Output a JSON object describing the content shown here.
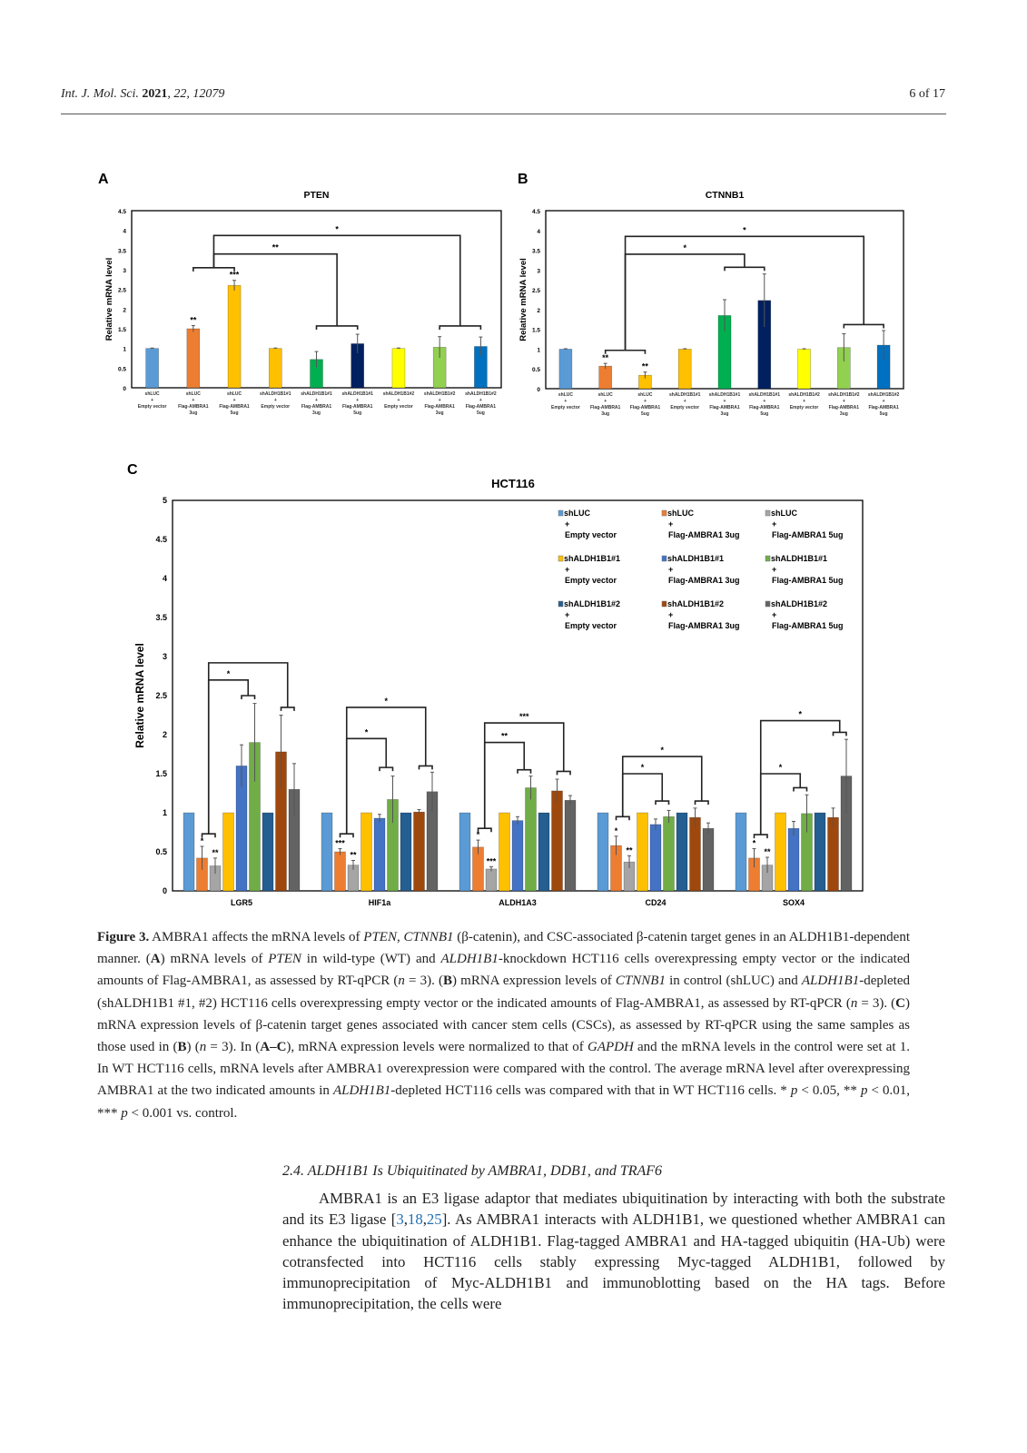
{
  "header": {
    "journal": "Int. J. Mol. Sci.",
    "year": "2021",
    "volume_issue": ", 22, 12079",
    "page": "6 of 17"
  },
  "colors": {
    "A": [
      "#5B9BD5",
      "#ED7D31",
      "#FFC000",
      "#FFC000",
      "#00B050",
      "#002060",
      "#FFFF00",
      "#92D050",
      "#0070C0"
    ],
    "C": [
      "#5B9BD5",
      "#ED7D31",
      "#A5A5A5",
      "#FFC000",
      "#4472C4",
      "#70AD47",
      "#255E91",
      "#9E480E",
      "#636363"
    ]
  },
  "chart_data": [
    {
      "panel": "A",
      "type": "bar",
      "title": "PTEN",
      "ylabel": "Relative mRNA level",
      "ylim": [
        0,
        4.5
      ],
      "yticks": [
        "0",
        "0.5",
        "1",
        "1.5",
        "2",
        "2.5",
        "3",
        "3.5",
        "4",
        "4.5"
      ],
      "categories": [
        [
          "shLUC",
          "+",
          "Empty vector"
        ],
        [
          "shLUC",
          "+",
          "Flag-AMBRA1",
          "3ug"
        ],
        [
          "shLUC",
          "+",
          "Flag-AMBRA1",
          "5ug"
        ],
        [
          "shALDH1B1#1",
          "+",
          "Empty vector"
        ],
        [
          "shALDH1B1#1",
          "+",
          "Flag-AMBRA1",
          "3ug"
        ],
        [
          "shALDH1B1#1",
          "+",
          "Flag-AMBRA1",
          "5ug"
        ],
        [
          "shALDH1B1#2",
          "+",
          "Empty vector"
        ],
        [
          "shALDH1B1#2",
          "+",
          "Flag-AMBRA1",
          "3ug"
        ],
        [
          "shALDH1B1#2",
          "+",
          "Flag-AMBRA1",
          "5ug"
        ]
      ],
      "values": [
        1,
        1.5,
        2.6,
        1,
        0.72,
        1.12,
        1,
        1.03,
        1.05
      ],
      "errors": [
        0.01,
        0.08,
        0.13,
        0.01,
        0.2,
        0.24,
        0.01,
        0.27,
        0.24
      ],
      "marks": [
        "",
        "**",
        "***",
        "",
        "",
        "",
        "",
        "",
        ""
      ],
      "caps": [
        {
          "bars": [
            1,
            2
          ],
          "y": 3.05
        },
        {
          "bars": [
            4,
            5
          ],
          "y": 1.57
        },
        {
          "bars": [
            7,
            8
          ],
          "y": 1.57
        }
      ],
      "links": [
        {
          "from": 0,
          "to": 1,
          "y": 3.4,
          "label": "**"
        },
        {
          "from": 0,
          "to": 2,
          "y": 3.87,
          "label": "*"
        }
      ]
    },
    {
      "panel": "B",
      "type": "bar",
      "title": "CTNNB1",
      "ylabel": "Relative mRNA level",
      "ylim": [
        0,
        4.5
      ],
      "yticks": [
        "0",
        "0.5",
        "1",
        "1.5",
        "2",
        "2.5",
        "3",
        "3.5",
        "4",
        "4.5"
      ],
      "categories": [
        [
          "shLUC",
          "+",
          "Empty vector"
        ],
        [
          "shLUC",
          "+",
          "Flag-AMBRA1",
          "3ug"
        ],
        [
          "shLUC",
          "+",
          "Flag-AMBRA1",
          "5ug"
        ],
        [
          "shALDH1B1#1",
          "+",
          "Empty vector"
        ],
        [
          "shALDH1B1#1",
          "+",
          "Flag-AMBRA1",
          "3ug"
        ],
        [
          "shALDH1B1#1",
          "+",
          "Flag-AMBRA1",
          "5ug"
        ],
        [
          "shALDH1B1#2",
          "+",
          "Empty vector"
        ],
        [
          "shALDH1B1#2",
          "+",
          "Flag-AMBRA1",
          "3ug"
        ],
        [
          "shALDH1B1#2",
          "+",
          "Flag-AMBRA1",
          "5ug"
        ]
      ],
      "values": [
        1,
        0.57,
        0.34,
        1,
        1.85,
        2.23,
        1,
        1.04,
        1.1
      ],
      "errors": [
        0.01,
        0.07,
        0.08,
        0.01,
        0.4,
        0.67,
        0.01,
        0.35,
        0.37
      ],
      "marks": [
        "",
        "**",
        "**",
        "",
        "",
        "",
        "",
        "",
        ""
      ],
      "caps": [
        {
          "bars": [
            1,
            2
          ],
          "y": 0.97
        },
        {
          "bars": [
            4,
            5
          ],
          "y": 3.07
        },
        {
          "bars": [
            7,
            8
          ],
          "y": 1.62
        }
      ],
      "links": [
        {
          "from": 0,
          "to": 1,
          "y": 3.4,
          "label": "*"
        },
        {
          "from": 0,
          "to": 2,
          "y": 3.85,
          "label": "*"
        }
      ]
    },
    {
      "panel": "C",
      "type": "bar",
      "title": "HCT116",
      "ylabel": "Relative mRNA level",
      "ylim": [
        0,
        5
      ],
      "yticks": [
        "0",
        "0.5",
        "1",
        "1.5",
        "2",
        "2.5",
        "3",
        "3.5",
        "4",
        "4.5",
        "5"
      ],
      "legend": [
        [
          "shLUC",
          "+",
          "Empty vector"
        ],
        [
          "shLUC",
          "+",
          "Flag-AMBRA1 3ug"
        ],
        [
          "shLUC",
          "+",
          "Flag-AMBRA1 5ug"
        ],
        [
          "shALDH1B1#1",
          "+",
          "Empty vector"
        ],
        [
          "shALDH1B1#1",
          "+",
          "Flag-AMBRA1 3ug"
        ],
        [
          "shALDH1B1#1",
          "+",
          "Flag-AMBRA1 5ug"
        ],
        [
          "shALDH1B1#2",
          "+",
          "Empty vector"
        ],
        [
          "shALDH1B1#2",
          "+",
          "Flag-AMBRA1 3ug"
        ],
        [
          "shALDH1B1#2",
          "+",
          "Flag-AMBRA1 5ug"
        ]
      ],
      "legend_placement": "top-right",
      "groups": [
        {
          "name": "LGR5",
          "values": [
            1,
            0.42,
            0.32,
            1,
            1.6,
            1.9,
            1,
            1.78,
            1.3
          ],
          "errors": [
            0,
            0.15,
            0.1,
            0,
            0.27,
            0.5,
            0,
            0.47,
            0.33
          ],
          "marks": [
            "",
            "*",
            "**",
            "",
            "",
            "",
            "",
            "",
            ""
          ],
          "caps": [
            {
              "bars": [
                1,
                2
              ],
              "y": 0.73
            },
            {
              "bars": [
                4,
                5
              ],
              "y": 2.5
            },
            {
              "bars": [
                7,
                8
              ],
              "y": 2.35
            }
          ],
          "links": [
            {
              "from": 0,
              "to": 1,
              "y": 2.7,
              "label": "*"
            },
            {
              "from": 0,
              "to": 2,
              "y": 2.92,
              "label": ""
            }
          ]
        },
        {
          "name": "HIF1a",
          "values": [
            1,
            0.5,
            0.33,
            1,
            0.93,
            1.17,
            1,
            1.01,
            1.27
          ],
          "errors": [
            0,
            0.04,
            0.06,
            0,
            0.05,
            0.3,
            0,
            0.03,
            0.25
          ],
          "marks": [
            "",
            "***",
            "**",
            "",
            "",
            "",
            "",
            "",
            ""
          ],
          "caps": [
            {
              "bars": [
                1,
                2
              ],
              "y": 0.73
            },
            {
              "bars": [
                4,
                5
              ],
              "y": 1.58
            },
            {
              "bars": [
                7,
                8
              ],
              "y": 1.6
            }
          ],
          "links": [
            {
              "from": 0,
              "to": 1,
              "y": 1.95,
              "label": "*"
            },
            {
              "from": 0,
              "to": 2,
              "y": 2.35,
              "label": "*"
            }
          ]
        },
        {
          "name": "ALDH1A3",
          "values": [
            1,
            0.56,
            0.28,
            1,
            0.9,
            1.32,
            1,
            1.28,
            1.16
          ],
          "errors": [
            0,
            0.09,
            0.03,
            0,
            0.05,
            0.15,
            0,
            0.15,
            0.06
          ],
          "marks": [
            "",
            "*",
            "***",
            "",
            "",
            "",
            "",
            "",
            ""
          ],
          "caps": [
            {
              "bars": [
                1,
                2
              ],
              "y": 0.8
            },
            {
              "bars": [
                4,
                5
              ],
              "y": 1.55
            },
            {
              "bars": [
                7,
                8
              ],
              "y": 1.53
            }
          ],
          "links": [
            {
              "from": 0,
              "to": 1,
              "y": 1.9,
              "label": "**"
            },
            {
              "from": 0,
              "to": 2,
              "y": 2.15,
              "label": "***"
            }
          ]
        },
        {
          "name": "CD24",
          "values": [
            1,
            0.58,
            0.37,
            1,
            0.85,
            0.95,
            1,
            0.94,
            0.8
          ],
          "errors": [
            0,
            0.12,
            0.08,
            0,
            0.07,
            0.08,
            0,
            0.12,
            0.07
          ],
          "marks": [
            "",
            "*",
            "**",
            "",
            "",
            "",
            "",
            "",
            ""
          ],
          "caps": [
            {
              "bars": [
                1,
                2
              ],
              "y": 0.95
            },
            {
              "bars": [
                4,
                5
              ],
              "y": 1.15
            },
            {
              "bars": [
                7,
                8
              ],
              "y": 1.15
            }
          ],
          "links": [
            {
              "from": 0,
              "to": 1,
              "y": 1.5,
              "label": "*"
            },
            {
              "from": 0,
              "to": 2,
              "y": 1.72,
              "label": "*"
            }
          ]
        },
        {
          "name": "SOX4",
          "values": [
            1,
            0.42,
            0.33,
            1,
            0.8,
            0.99,
            1,
            0.94,
            1.47
          ],
          "errors": [
            0,
            0.12,
            0.1,
            0,
            0.09,
            0.24,
            0,
            0.12,
            0.47
          ],
          "marks": [
            "",
            "*",
            "**",
            "",
            "",
            "",
            "",
            "",
            ""
          ],
          "caps": [
            {
              "bars": [
                1,
                2
              ],
              "y": 0.72
            },
            {
              "bars": [
                4,
                5
              ],
              "y": 1.32
            },
            {
              "bars": [
                7,
                8
              ],
              "y": 2.03
            }
          ],
          "links": [
            {
              "from": 0,
              "to": 1,
              "y": 1.5,
              "label": "*"
            },
            {
              "from": 0,
              "to": 2,
              "y": 2.18,
              "label": "*"
            }
          ]
        }
      ]
    }
  ],
  "caption": {
    "lead": "Figure 3.",
    "parts": [
      " AMBRA1 affects the mRNA levels of ",
      {
        "i": "PTEN"
      },
      ", ",
      {
        "i": "CTNNB1"
      },
      " (β-catenin), and CSC-associated β-catenin target genes in an ALDH1B1-dependent manner. (",
      {
        "b": "A"
      },
      ") mRNA levels of ",
      {
        "i": "PTEN"
      },
      " in wild-type (WT) and ",
      {
        "i": "ALDH1B1"
      },
      "-knockdown HCT116 cells overexpressing empty vector or the indicated amounts of Flag-AMBRA1, as assessed by RT-qPCR (",
      {
        "i": "n"
      },
      " = 3). (",
      {
        "b": "B"
      },
      ") mRNA expression levels of ",
      {
        "i": "CTNNB1"
      },
      " in control (shLUC) and ",
      {
        "i": "ALDH1B1"
      },
      "-depleted (shALDH1B1 #1, #2) HCT116 cells overexpressing empty vector or the indicated amounts of Flag-AMBRA1, as assessed by RT-qPCR (",
      {
        "i": "n"
      },
      " = 3). (",
      {
        "b": "C"
      },
      ") mRNA expression levels of β-catenin target genes associated with cancer stem cells (CSCs), as assessed by RT-qPCR using the same samples as those used in (",
      {
        "b": "B"
      },
      ") (",
      {
        "i": "n"
      },
      " = 3). In (",
      {
        "b": "A–C"
      },
      "), mRNA expression levels were normalized to that of ",
      {
        "i": "GAPDH"
      },
      " and the mRNA levels in the control were set at 1. In WT HCT116 cells, mRNA levels after AMBRA1 overexpression were compared with the control. The average mRNA level after overexpressing AMBRA1 at the two indicated amounts in ",
      {
        "i": "ALDH1B1"
      },
      "-depleted HCT116 cells was compared with that in WT HCT116 cells. * ",
      {
        "i": "p"
      },
      " < 0.05, ** ",
      {
        "i": "p"
      },
      " < 0.01, *** ",
      {
        "i": "p"
      },
      " < 0.001 vs. control."
    ]
  },
  "section": {
    "heading": "2.4. ALDH1B1 Is Ubiquitinated by AMBRA1, DDB1, and TRAF6",
    "body": [
      "AMBRA1 is an E3 ligase adaptor that mediates ubiquitination by interacting with both the substrate and its E3 ligase [",
      {
        "ref": "3"
      },
      ",",
      {
        "ref": "18"
      },
      ",",
      {
        "ref": "25"
      },
      "]. As AMBRA1 interacts with ALDH1B1, we questioned whether AMBRA1 can enhance the ubiquitination of ALDH1B1. Flag-tagged AMBRA1 and HA-tagged ubiquitin (HA-Ub) were cotransfected into HCT116 cells stably expressing Myc-tagged ALDH1B1, followed by immunoprecipitation of Myc-ALDH1B1 and immunoblotting based on the HA tags. Before immunoprecipitation, the cells were"
    ]
  }
}
